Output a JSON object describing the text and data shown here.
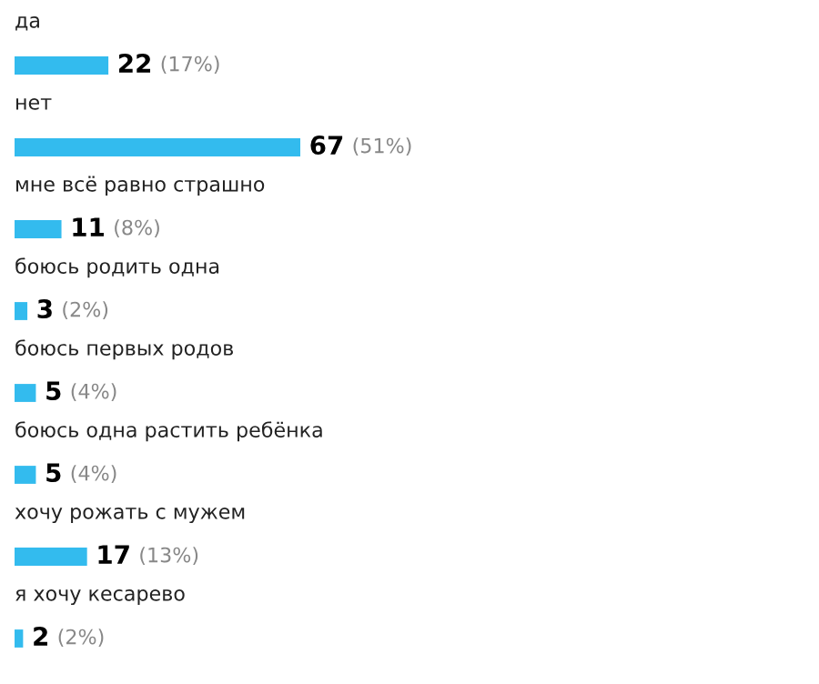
{
  "chart_data": {
    "type": "bar",
    "orientation": "horizontal",
    "categories": [
      "да",
      "нет",
      "мне всё равно страшно",
      "боюсь родить одна",
      "боюсь первых родов",
      "боюсь одна растить ребёнка",
      "хочу рожать с мужем",
      "я хочу кесарево"
    ],
    "values": [
      22,
      67,
      11,
      3,
      5,
      5,
      17,
      2
    ],
    "value_labels": [
      "22 (17%)",
      "67 (51%)",
      "11 (8%)",
      "3 (2%)",
      "5 (4%)",
      "5 (4%)",
      "17 (13%)",
      "2 (2%)"
    ],
    "color": "#33bbee"
  }
}
